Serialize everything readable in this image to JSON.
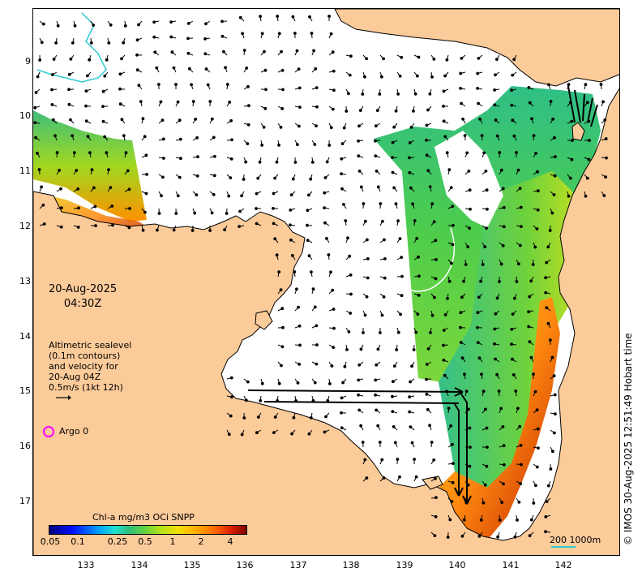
{
  "map": {
    "y_ticks": [
      "9",
      "10",
      "11",
      "12",
      "13",
      "14",
      "15",
      "16",
      "17"
    ],
    "x_ticks": [
      "133",
      "134",
      "135",
      "136",
      "137",
      "138",
      "139",
      "140",
      "141",
      "142"
    ],
    "date": "20-Aug-2025",
    "time": "04:30Z",
    "legend_lines": [
      "Altimetric sealevel",
      "(0.1m contours)",
      "and velocity for",
      "20-Aug 04Z",
      "0.5m/s (1kt 12h)"
    ],
    "argo_label": "Argo 0",
    "colorbar_title": "Chl-a mg/m3 OCi SNPP",
    "colorbar_ticks": [
      "0.05",
      "0.1",
      "0.25",
      "0.5",
      "1",
      "2",
      "4"
    ],
    "scale_label": "200  1000m",
    "credit": "© IMOS 30-Aug-2025 12:51:49 Hobart time",
    "colors": {
      "land": "#fccb9a",
      "ocean": "#ffffff",
      "argo": "#ff00ff",
      "bathy": "#2ecbd0"
    }
  }
}
